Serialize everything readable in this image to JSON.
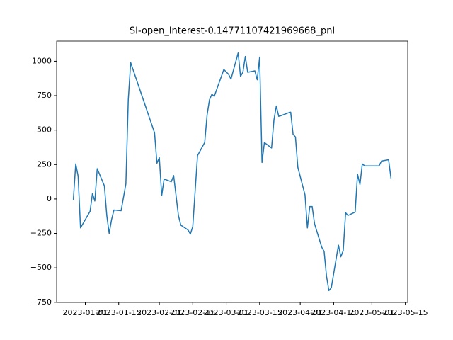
{
  "chart_data": {
    "type": "line",
    "title": "SI-open_interest-0.14771107421969668_pnl",
    "color": "#1f77b4",
    "x": [
      "2022-12-27",
      "2022-12-28",
      "2022-12-29",
      "2022-12-30",
      "2023-01-03",
      "2023-01-04",
      "2023-01-05",
      "2023-01-06",
      "2023-01-09",
      "2023-01-10",
      "2023-01-11",
      "2023-01-12",
      "2023-01-13",
      "2023-01-16",
      "2023-01-18",
      "2023-01-19",
      "2023-01-20",
      "2023-01-30",
      "2023-01-31",
      "2023-02-01",
      "2023-02-02",
      "2023-02-03",
      "2023-02-06",
      "2023-02-07",
      "2023-02-09",
      "2023-02-10",
      "2023-02-13",
      "2023-02-14",
      "2023-02-15",
      "2023-02-16",
      "2023-02-17",
      "2023-02-20",
      "2023-02-21",
      "2023-02-22",
      "2023-02-23",
      "2023-02-24",
      "2023-02-28",
      "2023-03-02",
      "2023-03-03",
      "2023-03-06",
      "2023-03-07",
      "2023-03-08",
      "2023-03-09",
      "2023-03-10",
      "2023-03-13",
      "2023-03-14",
      "2023-03-15",
      "2023-03-16",
      "2023-03-17",
      "2023-03-20",
      "2023-03-21",
      "2023-03-22",
      "2023-03-23",
      "2023-03-24",
      "2023-03-27",
      "2023-03-28",
      "2023-03-29",
      "2023-03-30",
      "2023-03-31",
      "2023-04-03",
      "2023-04-04",
      "2023-04-05",
      "2023-04-06",
      "2023-04-07",
      "2023-04-10",
      "2023-04-11",
      "2023-04-12",
      "2023-04-13",
      "2023-04-14",
      "2023-04-17",
      "2023-04-18",
      "2023-04-19",
      "2023-04-20",
      "2023-04-21",
      "2023-04-24",
      "2023-04-25",
      "2023-04-26",
      "2023-04-27",
      "2023-04-28",
      "2023-05-01",
      "2023-05-04",
      "2023-05-05",
      "2023-05-08",
      "2023-05-09"
    ],
    "values": [
      -5,
      255,
      165,
      -210,
      -90,
      40,
      -15,
      220,
      95,
      -120,
      -250,
      -150,
      -80,
      -85,
      110,
      720,
      990,
      480,
      260,
      300,
      25,
      145,
      125,
      170,
      -120,
      -190,
      -225,
      -255,
      -200,
      60,
      315,
      410,
      610,
      720,
      760,
      745,
      940,
      905,
      870,
      1060,
      890,
      920,
      1035,
      920,
      930,
      865,
      1030,
      265,
      410,
      370,
      575,
      675,
      600,
      605,
      625,
      630,
      470,
      450,
      230,
      30,
      -210,
      -55,
      -55,
      -180,
      -350,
      -380,
      -560,
      -665,
      -645,
      -335,
      -420,
      -375,
      -100,
      -120,
      -95,
      180,
      105,
      255,
      240,
      240,
      240,
      275,
      285,
      150
    ],
    "xlim": [
      "2022-12-20",
      "2023-05-16"
    ],
    "xticks": [
      "2023-01-01",
      "2023-01-15",
      "2023-02-01",
      "2023-02-15",
      "2023-03-01",
      "2023-03-15",
      "2023-04-01",
      "2023-04-15",
      "2023-05-01",
      "2023-05-15"
    ],
    "ylim": [
      -751,
      1146
    ],
    "yticks": [
      {
        "value": -750,
        "label": "−750"
      },
      {
        "value": -500,
        "label": "−500"
      },
      {
        "value": -250,
        "label": "−250"
      },
      0,
      250,
      500,
      750,
      1000
    ]
  }
}
